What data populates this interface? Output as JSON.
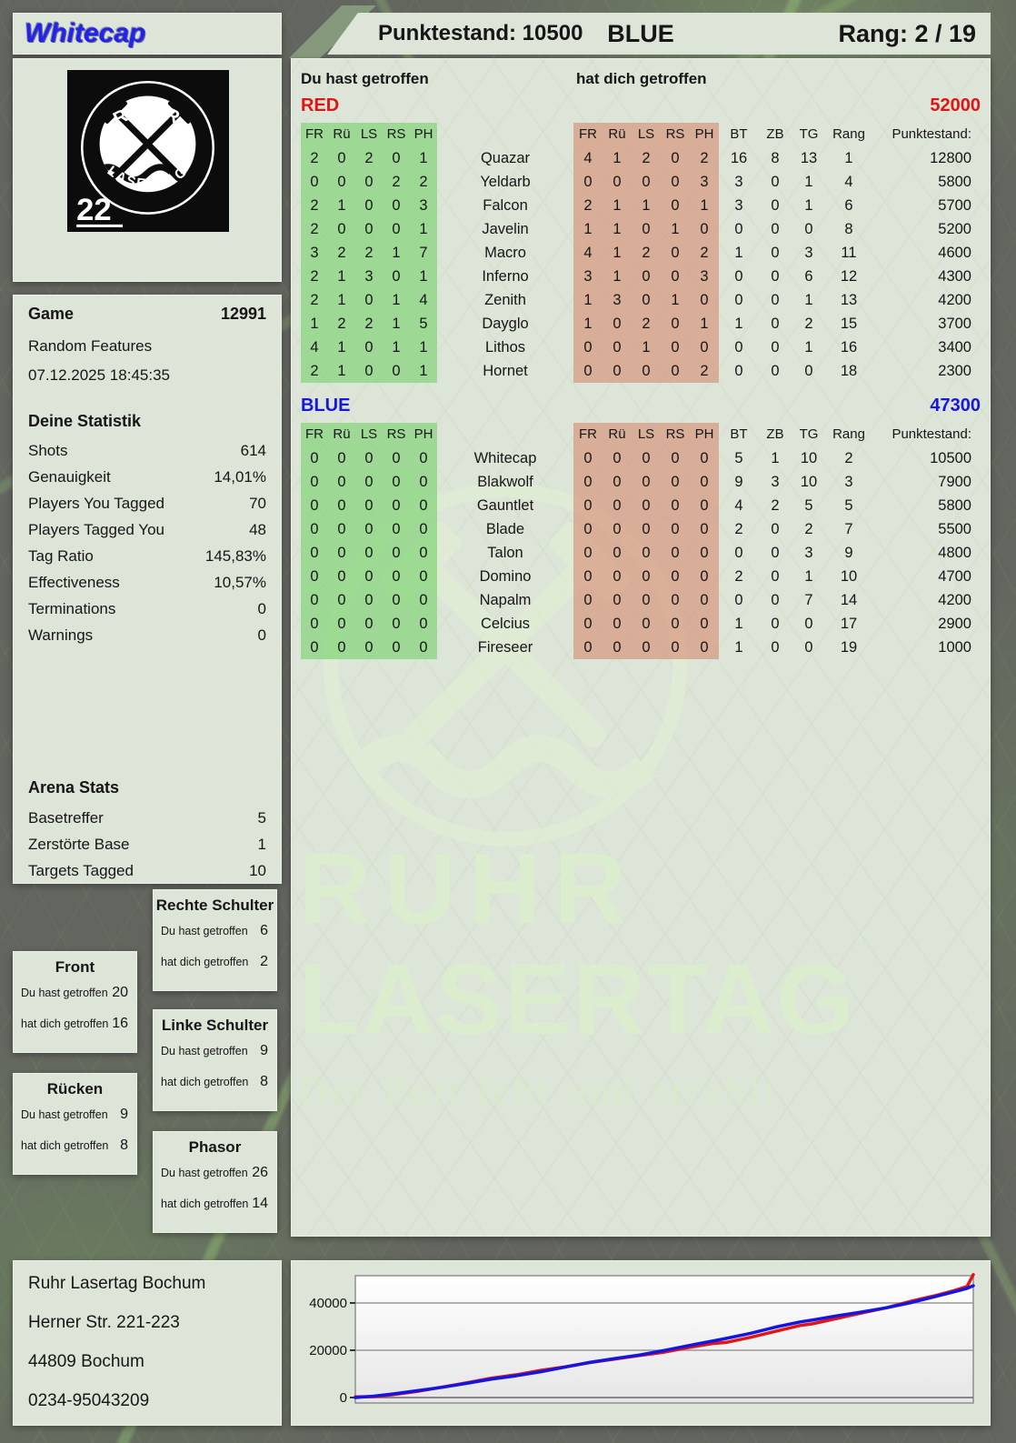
{
  "header": {
    "player_name": "Whitecap",
    "score_label": "Punktestand: 10500",
    "team": "BLUE",
    "rank_label": "Rang: 2 / 19"
  },
  "logo": {
    "arc_top": "RUHR",
    "arc_bottom": "LASERTAG",
    "number": "22"
  },
  "game": {
    "label": "Game",
    "id": "12991",
    "mode": "Random Features",
    "datetime": "07.12.2025 18:45:35"
  },
  "stats": {
    "title": "Deine Statistik",
    "rows": [
      {
        "label": "Shots",
        "value": "614"
      },
      {
        "label": "Genauigkeit",
        "value": "14,01%"
      },
      {
        "label": "Players You Tagged",
        "value": "70"
      },
      {
        "label": "Players Tagged You",
        "value": "48"
      },
      {
        "label": "Tag Ratio",
        "value": "145,83%"
      },
      {
        "label": "Effectiveness",
        "value": "10,57%"
      },
      {
        "label": "Terminations",
        "value": "0"
      },
      {
        "label": "Warnings",
        "value": "0"
      }
    ]
  },
  "arena": {
    "title": "Arena Stats",
    "rows": [
      {
        "label": "Basetreffer",
        "value": "5"
      },
      {
        "label": "Zerstörte Base",
        "value": "1"
      },
      {
        "label": "Targets Tagged",
        "value": "10"
      }
    ]
  },
  "labels": {
    "you_hit": "Du hast getroffen",
    "hit_you": "hat dich getroffen"
  },
  "hit_boxes": [
    {
      "title": "Rechte Schulter",
      "you": "6",
      "them": "2"
    },
    {
      "title": "Front",
      "you": "20",
      "them": "16"
    },
    {
      "title": "Linke Schulter",
      "you": "9",
      "them": "8"
    },
    {
      "title": "Rücken",
      "you": "9",
      "them": "8"
    },
    {
      "title": "Phasor",
      "you": "26",
      "them": "14"
    }
  ],
  "table": {
    "columns": [
      "FR",
      "Rü",
      "LS",
      "RS",
      "PH"
    ],
    "right_columns": [
      "BT",
      "ZB",
      "TG",
      "Rang",
      "Punktestand:"
    ],
    "red": {
      "team": "RED",
      "total": "52000",
      "rows": [
        {
          "name": "Quazar",
          "you": [
            2,
            0,
            2,
            0,
            1
          ],
          "them": [
            4,
            1,
            2,
            0,
            2
          ],
          "bt": 16,
          "zb": 8,
          "tg": 13,
          "rang": 1,
          "score": 12800
        },
        {
          "name": "Yeldarb",
          "you": [
            0,
            0,
            0,
            2,
            2
          ],
          "them": [
            0,
            0,
            0,
            0,
            3
          ],
          "bt": 3,
          "zb": 0,
          "tg": 1,
          "rang": 4,
          "score": 5800
        },
        {
          "name": "Falcon",
          "you": [
            2,
            1,
            0,
            0,
            3
          ],
          "them": [
            2,
            1,
            1,
            0,
            1
          ],
          "bt": 3,
          "zb": 0,
          "tg": 1,
          "rang": 6,
          "score": 5700
        },
        {
          "name": "Javelin",
          "you": [
            2,
            0,
            0,
            0,
            1
          ],
          "them": [
            1,
            1,
            0,
            1,
            0
          ],
          "bt": 0,
          "zb": 0,
          "tg": 0,
          "rang": 8,
          "score": 5200
        },
        {
          "name": "Macro",
          "you": [
            3,
            2,
            2,
            1,
            7
          ],
          "them": [
            4,
            1,
            2,
            0,
            2
          ],
          "bt": 1,
          "zb": 0,
          "tg": 3,
          "rang": 11,
          "score": 4600
        },
        {
          "name": "Inferno",
          "you": [
            2,
            1,
            3,
            0,
            1
          ],
          "them": [
            3,
            1,
            0,
            0,
            3
          ],
          "bt": 0,
          "zb": 0,
          "tg": 6,
          "rang": 12,
          "score": 4300
        },
        {
          "name": "Zenith",
          "you": [
            2,
            1,
            0,
            1,
            4
          ],
          "them": [
            1,
            3,
            0,
            1,
            0
          ],
          "bt": 0,
          "zb": 0,
          "tg": 1,
          "rang": 13,
          "score": 4200
        },
        {
          "name": "Dayglo",
          "you": [
            1,
            2,
            2,
            1,
            5
          ],
          "them": [
            1,
            0,
            2,
            0,
            1
          ],
          "bt": 1,
          "zb": 0,
          "tg": 2,
          "rang": 15,
          "score": 3700
        },
        {
          "name": "Lithos",
          "you": [
            4,
            1,
            0,
            1,
            1
          ],
          "them": [
            0,
            0,
            1,
            0,
            0
          ],
          "bt": 0,
          "zb": 0,
          "tg": 1,
          "rang": 16,
          "score": 3400
        },
        {
          "name": "Hornet",
          "you": [
            2,
            1,
            0,
            0,
            1
          ],
          "them": [
            0,
            0,
            0,
            0,
            2
          ],
          "bt": 0,
          "zb": 0,
          "tg": 0,
          "rang": 18,
          "score": 2300
        }
      ]
    },
    "blue": {
      "team": "BLUE",
      "total": "47300",
      "rows": [
        {
          "name": "Whitecap",
          "you": [
            0,
            0,
            0,
            0,
            0
          ],
          "them": [
            0,
            0,
            0,
            0,
            0
          ],
          "bt": 5,
          "zb": 1,
          "tg": 10,
          "rang": 2,
          "score": 10500
        },
        {
          "name": "Blakwolf",
          "you": [
            0,
            0,
            0,
            0,
            0
          ],
          "them": [
            0,
            0,
            0,
            0,
            0
          ],
          "bt": 9,
          "zb": 3,
          "tg": 10,
          "rang": 3,
          "score": 7900
        },
        {
          "name": "Gauntlet",
          "you": [
            0,
            0,
            0,
            0,
            0
          ],
          "them": [
            0,
            0,
            0,
            0,
            0
          ],
          "bt": 4,
          "zb": 2,
          "tg": 5,
          "rang": 5,
          "score": 5800
        },
        {
          "name": "Blade",
          "you": [
            0,
            0,
            0,
            0,
            0
          ],
          "them": [
            0,
            0,
            0,
            0,
            0
          ],
          "bt": 2,
          "zb": 0,
          "tg": 2,
          "rang": 7,
          "score": 5500
        },
        {
          "name": "Talon",
          "you": [
            0,
            0,
            0,
            0,
            0
          ],
          "them": [
            0,
            0,
            0,
            0,
            0
          ],
          "bt": 0,
          "zb": 0,
          "tg": 3,
          "rang": 9,
          "score": 4800
        },
        {
          "name": "Domino",
          "you": [
            0,
            0,
            0,
            0,
            0
          ],
          "them": [
            0,
            0,
            0,
            0,
            0
          ],
          "bt": 2,
          "zb": 0,
          "tg": 1,
          "rang": 10,
          "score": 4700
        },
        {
          "name": "Napalm",
          "you": [
            0,
            0,
            0,
            0,
            0
          ],
          "them": [
            0,
            0,
            0,
            0,
            0
          ],
          "bt": 0,
          "zb": 0,
          "tg": 7,
          "rang": 14,
          "score": 4200
        },
        {
          "name": "Celcius",
          "you": [
            0,
            0,
            0,
            0,
            0
          ],
          "them": [
            0,
            0,
            0,
            0,
            0
          ],
          "bt": 1,
          "zb": 0,
          "tg": 0,
          "rang": 17,
          "score": 2900
        },
        {
          "name": "Fireseer",
          "you": [
            0,
            0,
            0,
            0,
            0
          ],
          "them": [
            0,
            0,
            0,
            0,
            0
          ],
          "bt": 1,
          "zb": 0,
          "tg": 0,
          "rang": 19,
          "score": 1000
        }
      ]
    }
  },
  "watermark": {
    "line1": "RUHR",
    "line2": "LASERTAG",
    "slogan": "Der Pott lebt und strahlt"
  },
  "address": {
    "lines": [
      "Ruhr Lasertag Bochum",
      "Herner Str. 221-223",
      "44809 Bochum",
      "0234-95043209"
    ]
  },
  "colors": {
    "red_team": "#e01515",
    "blue_team": "#1717dd",
    "green_cell": "#a6dca0",
    "red_cell": "#dcab99",
    "player_name": "#2222ee"
  },
  "chart_data": {
    "type": "line",
    "title": "",
    "xlabel": "",
    "ylabel": "",
    "yticks": [
      0,
      20000,
      40000
    ],
    "ylim": [
      0,
      53000
    ],
    "grid": true,
    "legend": "none",
    "series": [
      {
        "name": "RED",
        "color": "#e01515",
        "points": [
          [
            0,
            300
          ],
          [
            3,
            400
          ],
          [
            6,
            1200
          ],
          [
            10,
            2600
          ],
          [
            14,
            4400
          ],
          [
            18,
            6200
          ],
          [
            22,
            8200
          ],
          [
            26,
            9600
          ],
          [
            30,
            11500
          ],
          [
            34,
            13000
          ],
          [
            38,
            14800
          ],
          [
            42,
            16300
          ],
          [
            46,
            17800
          ],
          [
            50,
            19200
          ],
          [
            54,
            21200
          ],
          [
            58,
            22900
          ],
          [
            60,
            23300
          ],
          [
            64,
            25500
          ],
          [
            68,
            28000
          ],
          [
            72,
            30500
          ],
          [
            74,
            31200
          ],
          [
            78,
            33500
          ],
          [
            82,
            35800
          ],
          [
            86,
            38000
          ],
          [
            90,
            40800
          ],
          [
            94,
            43200
          ],
          [
            97,
            45300
          ],
          [
            99,
            47000
          ],
          [
            100,
            52000
          ]
        ]
      },
      {
        "name": "BLUE",
        "color": "#1515e0",
        "points": [
          [
            0,
            0
          ],
          [
            3,
            600
          ],
          [
            6,
            1500
          ],
          [
            10,
            2900
          ],
          [
            14,
            4300
          ],
          [
            18,
            6000
          ],
          [
            22,
            7800
          ],
          [
            26,
            9200
          ],
          [
            30,
            10900
          ],
          [
            34,
            12900
          ],
          [
            38,
            14900
          ],
          [
            42,
            16500
          ],
          [
            46,
            18000
          ],
          [
            50,
            19900
          ],
          [
            54,
            22000
          ],
          [
            58,
            24000
          ],
          [
            60,
            25000
          ],
          [
            64,
            27200
          ],
          [
            68,
            29800
          ],
          [
            72,
            32000
          ],
          [
            74,
            32800
          ],
          [
            78,
            34600
          ],
          [
            82,
            36200
          ],
          [
            86,
            38000
          ],
          [
            90,
            40200
          ],
          [
            94,
            42800
          ],
          [
            97,
            44800
          ],
          [
            99,
            46200
          ],
          [
            100,
            47300
          ]
        ]
      }
    ]
  }
}
